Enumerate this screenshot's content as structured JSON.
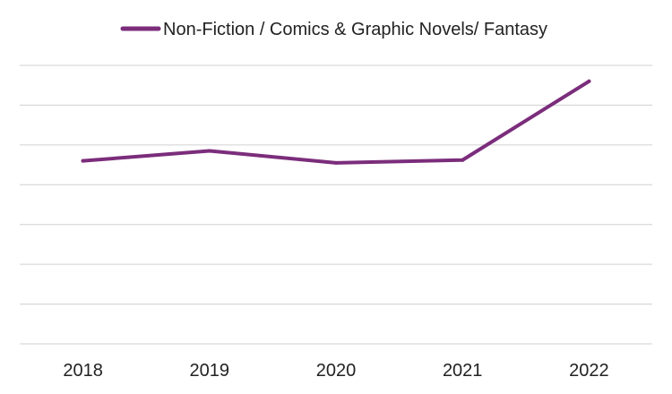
{
  "chart_data": {
    "type": "line",
    "categories": [
      "2018",
      "2019",
      "2020",
      "2021",
      "2022"
    ],
    "series": [
      {
        "name": "Non-Fiction / Comics & Graphic Novels/ Fantasy",
        "values": [
          4.6,
          4.85,
          4.55,
          4.62,
          6.6
        ],
        "color": "#7b2d7b"
      }
    ],
    "title": "",
    "xlabel": "",
    "ylabel": "",
    "ylim": [
      0,
      7
    ],
    "y_tick_labels_visible": false,
    "grid": true,
    "legend_position": "top-center"
  }
}
